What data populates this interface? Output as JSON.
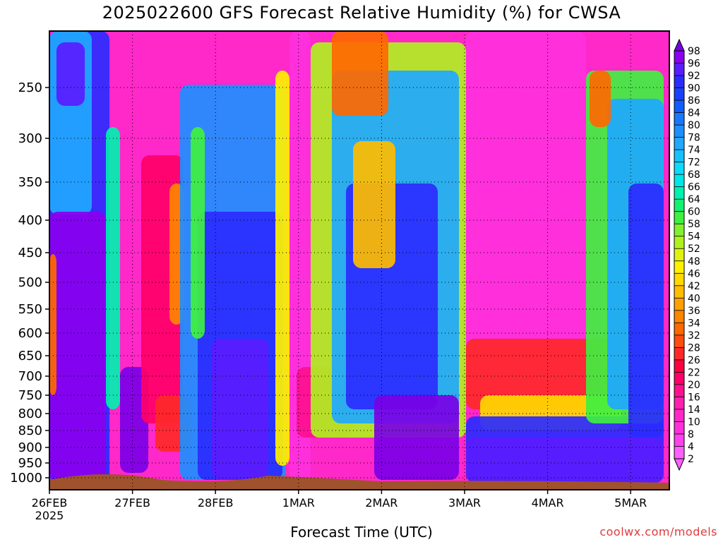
{
  "chart_data": {
    "type": "heatmap",
    "title": "2025022600 GFS Forecast Relative Humidity (%) for CWSA",
    "xlabel": "Forecast Time (UTC)",
    "ylabel": "",
    "x_ticks": [
      "26FEB",
      "27FEB",
      "28FEB",
      "1MAR",
      "2MAR",
      "3MAR",
      "4MAR",
      "5MAR"
    ],
    "x_year": "2025",
    "y_ticks": [
      "250",
      "300",
      "350",
      "400",
      "450",
      "500",
      "550",
      "600",
      "650",
      "700",
      "750",
      "800",
      "850",
      "900",
      "950",
      "1000"
    ],
    "colorbar_levels": [
      "98",
      "96",
      "92",
      "90",
      "86",
      "84",
      "80",
      "78",
      "74",
      "72",
      "68",
      "66",
      "64",
      "60",
      "58",
      "54",
      "52",
      "48",
      "46",
      "42",
      "40",
      "36",
      "34",
      "32",
      "28",
      "26",
      "22",
      "20",
      "16",
      "14",
      "10",
      "8",
      "4",
      "2"
    ],
    "colorbar_colors": [
      "#7b00e6",
      "#8a00f0",
      "#5a1cff",
      "#2b2bff",
      "#1a40ff",
      "#0f5cff",
      "#1a78ff",
      "#1e8fff",
      "#20a8ff",
      "#18c0ff",
      "#10d8ff",
      "#00e6e6",
      "#00f0b0",
      "#14f070",
      "#40f040",
      "#80f030",
      "#b0f020",
      "#e0f010",
      "#fff000",
      "#ffd800",
      "#ffbc00",
      "#ffa000",
      "#ff8400",
      "#ff6800",
      "#ff4c10",
      "#ff2828",
      "#ff0040",
      "#ff0068",
      "#ff1090",
      "#ff20b0",
      "#ff28c8",
      "#ff30dc",
      "#ff40ec",
      "#ff60ff"
    ],
    "description": "Time-height cross-section of forecast relative humidity; very moist upper/mid levels on 26FEB and 28FEB, dry layers 27FEB, 1MAR and 3-4MAR aloft with a moist boundary layer below 800 hPa.",
    "grid": true
  },
  "labels": {
    "title": "2025022600 GFS Forecast Relative Humidity (%) for CWSA",
    "xaxis_title": "Forecast Time (UTC)",
    "credit": "coolwx.com/models"
  }
}
